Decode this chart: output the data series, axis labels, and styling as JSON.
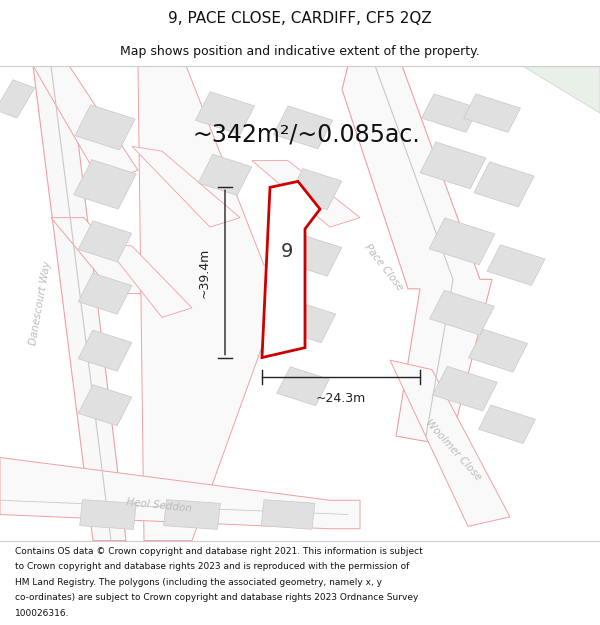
{
  "title": "9, PACE CLOSE, CARDIFF, CF5 2QZ",
  "subtitle": "Map shows position and indicative extent of the property.",
  "area_text": "~342m²/~0.085ac.",
  "width_label": "~24.3m",
  "height_label": "~39.4m",
  "property_number": "9",
  "label_pace_close": "Pace Close",
  "label_danescourt_way": "Danescourt Way",
  "label_heol_seddon": "Heol Seddon",
  "label_woolmer_close": "Woolmer Close",
  "footer_lines": [
    "Contains OS data © Crown copyright and database right 2021. This information is subject",
    "to Crown copyright and database rights 2023 and is reproduced with the permission of",
    "HM Land Registry. The polygons (including the associated geometry, namely x, y",
    "co-ordinates) are subject to Crown copyright and database rights 2023 Ordnance Survey",
    "100026316."
  ],
  "bg_color": "#ffffff",
  "map_bg": "#f9f9f9",
  "road_outline_color": "#f0a0a0",
  "road_fill_color": "#ffffff",
  "building_fill": "#e0e0e0",
  "building_edge": "#c8c8c8",
  "plot_outline_color": "#cc0000",
  "dim_color": "#222222",
  "street_color": "#bbbbbb",
  "title_color": "#111111",
  "footer_color": "#111111",
  "green_fill": "#e8f0e8",
  "road_line_color": "#aaaaaa"
}
